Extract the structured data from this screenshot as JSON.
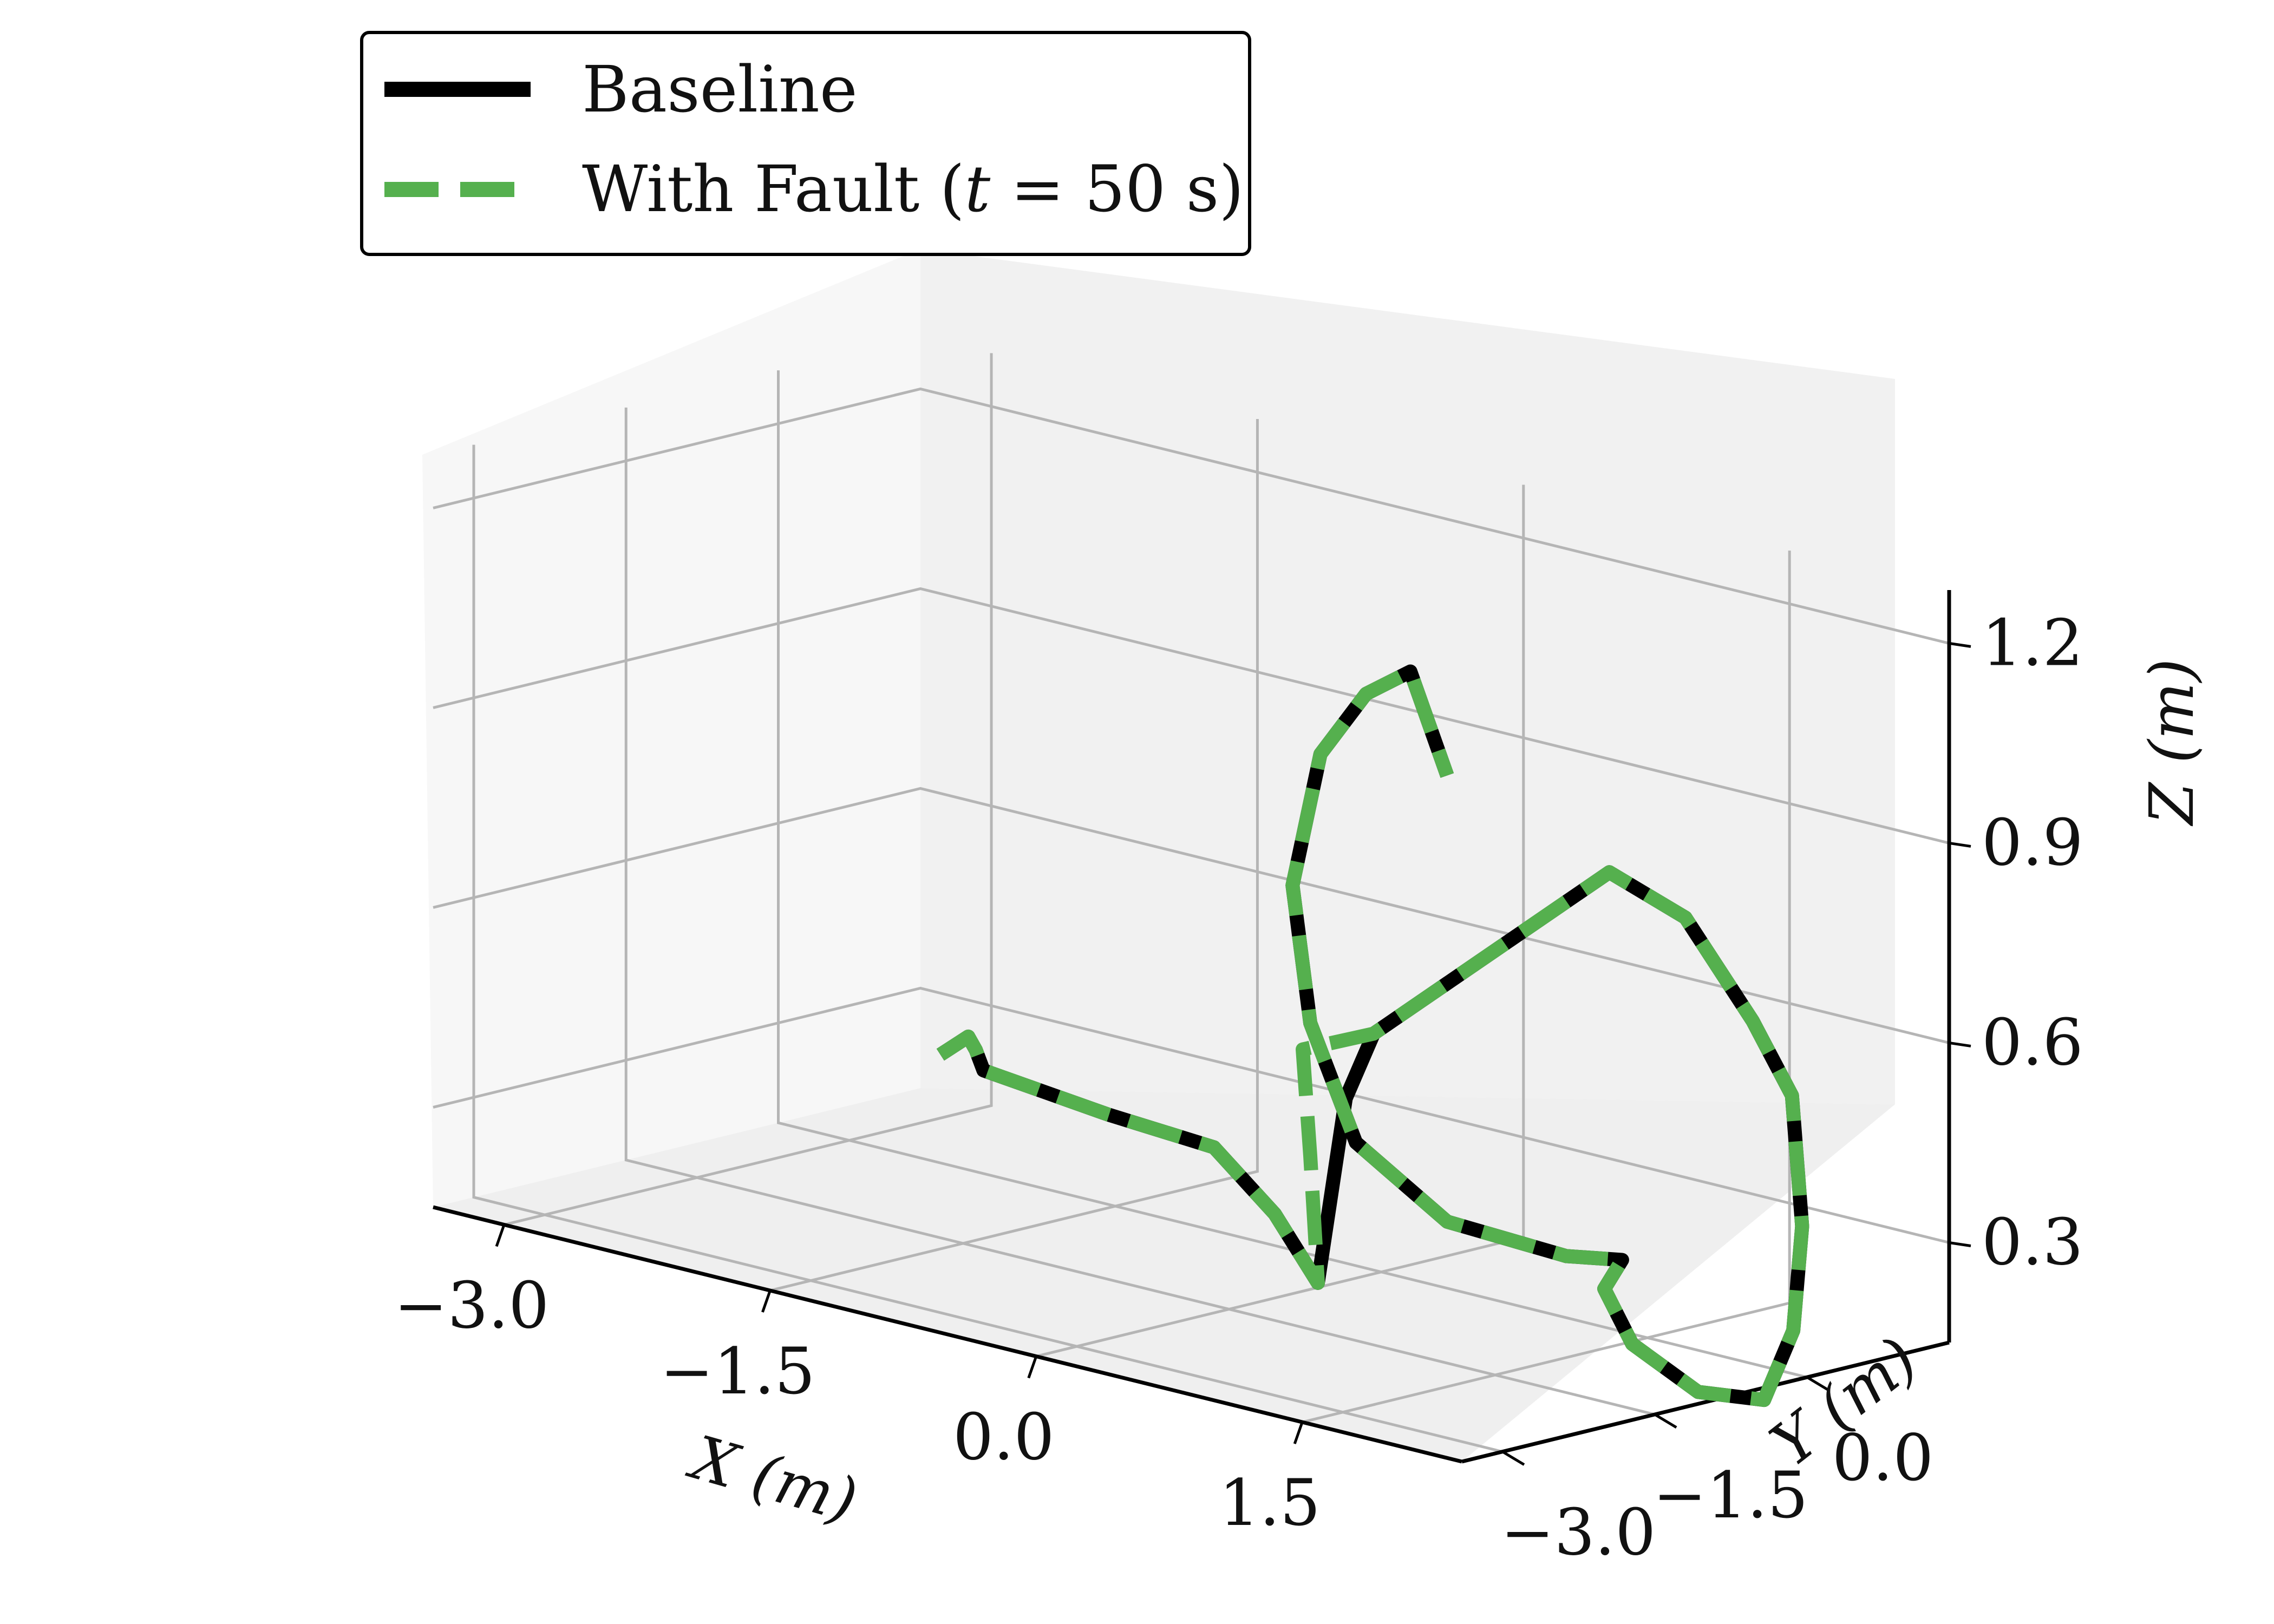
{
  "chart_data": {
    "type": "line",
    "subtype": "3d-line",
    "title": "",
    "xlabel": "X (m)",
    "ylabel": "Y (m)",
    "zlabel": "Z (m)",
    "xlim": [
      -3.4,
      2.4
    ],
    "ylim": [
      -3.4,
      1.4
    ],
    "zlim": [
      0.15,
      1.28
    ],
    "xticks": [
      "−3.0",
      "−1.5",
      "0.0",
      "1.5"
    ],
    "yticks": [
      "−3.0",
      "−1.5",
      "0.0"
    ],
    "zticks": [
      "0.3",
      "0.6",
      "0.9",
      "1.2"
    ],
    "xtick_values": [
      -3.0,
      -1.5,
      0.0,
      1.5
    ],
    "ytick_values": [
      -3.0,
      -1.5,
      0.0
    ],
    "ztick_values": [
      0.3,
      0.6,
      0.9,
      1.2
    ],
    "grid": true,
    "legend_position": "upper-left",
    "colors": {
      "baseline": "#000000",
      "fault": "#55b04e",
      "pane": "#f2f2f2",
      "grid": "#b5b5b5"
    },
    "series": [
      {
        "name": "Baseline",
        "style": "solid",
        "points": [
          [
            -2.2,
            -0.5,
            0.35
          ],
          [
            -2.1,
            -0.4,
            0.38
          ],
          [
            -2.0,
            -0.5,
            0.37
          ],
          [
            -1.9,
            -0.6,
            0.35
          ],
          [
            -1.2,
            -0.6,
            0.33
          ],
          [
            -0.6,
            -0.6,
            0.32
          ],
          [
            -0.2,
            -0.7,
            0.25
          ],
          [
            0.1,
            -0.8,
            0.17
          ],
          [
            0.2,
            -0.7,
            0.45
          ],
          [
            0.3,
            -0.6,
            0.55
          ],
          [
            1.4,
            -0.2,
            0.85
          ],
          [
            1.6,
            0.2,
            0.78
          ],
          [
            1.75,
            0.6,
            0.62
          ],
          [
            1.8,
            0.9,
            0.5
          ],
          [
            1.8,
            1.0,
            0.3
          ],
          [
            1.75,
            1.0,
            0.14
          ],
          [
            1.7,
            0.8,
            0.04
          ],
          [
            1.5,
            0.5,
            0.05
          ],
          [
            1.3,
            0.2,
            0.12
          ],
          [
            1.2,
            0.1,
            0.2
          ],
          [
            1.3,
            0.1,
            0.25
          ],
          [
            1.1,
            -0.1,
            0.25
          ],
          [
            0.6,
            -0.4,
            0.28
          ],
          [
            0.2,
            -0.6,
            0.38
          ],
          [
            0.0,
            -0.7,
            0.55
          ],
          [
            -0.1,
            -0.7,
            0.75
          ],
          [
            0.0,
            -0.6,
            0.95
          ],
          [
            0.2,
            -0.5,
            1.05
          ],
          [
            0.45,
            -0.5,
            1.1
          ],
          [
            0.6,
            -0.4,
            0.95
          ]
        ]
      },
      {
        "name": "With Fault (t = 50 s)",
        "style": "dashed",
        "points": [
          [
            -2.2,
            -0.5,
            0.35
          ],
          [
            -2.1,
            -0.4,
            0.38
          ],
          [
            -2.0,
            -0.5,
            0.37
          ],
          [
            -1.9,
            -0.6,
            0.35
          ],
          [
            -1.2,
            -0.6,
            0.33
          ],
          [
            -0.6,
            -0.6,
            0.32
          ],
          [
            -0.2,
            -0.7,
            0.25
          ],
          [
            0.1,
            -0.8,
            0.17
          ],
          [
            0.0,
            -0.7,
            0.35
          ],
          [
            -0.1,
            -0.6,
            0.5
          ],
          [
            0.3,
            -0.6,
            0.55
          ],
          [
            1.4,
            -0.2,
            0.85
          ],
          [
            1.6,
            0.2,
            0.78
          ],
          [
            1.75,
            0.6,
            0.62
          ],
          [
            1.8,
            0.9,
            0.5
          ],
          [
            1.8,
            1.0,
            0.3
          ],
          [
            1.75,
            1.0,
            0.14
          ],
          [
            1.7,
            0.8,
            0.04
          ],
          [
            1.5,
            0.5,
            0.05
          ],
          [
            1.3,
            0.2,
            0.12
          ],
          [
            1.2,
            0.1,
            0.2
          ],
          [
            1.3,
            0.1,
            0.25
          ],
          [
            1.1,
            -0.1,
            0.25
          ],
          [
            0.6,
            -0.4,
            0.28
          ],
          [
            0.2,
            -0.6,
            0.38
          ],
          [
            0.0,
            -0.7,
            0.55
          ],
          [
            -0.1,
            -0.7,
            0.75
          ],
          [
            0.0,
            -0.6,
            0.95
          ],
          [
            0.2,
            -0.5,
            1.05
          ],
          [
            0.45,
            -0.5,
            1.1
          ],
          [
            0.6,
            -0.4,
            0.95
          ]
        ]
      }
    ],
    "legend": {
      "entries": [
        {
          "label": "Baseline",
          "style": "solid",
          "color": "#000000"
        },
        {
          "label_prefix": "With Fault (",
          "label_var": "t",
          "label_eq": " = ",
          "label_val": "50",
          "label_unit": " s",
          "label_suffix": ")",
          "style": "dashed",
          "color": "#55b04e"
        }
      ]
    }
  }
}
